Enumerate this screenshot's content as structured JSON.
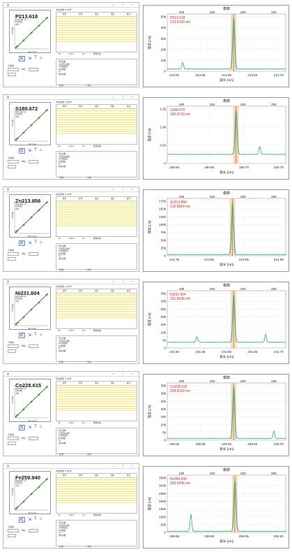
{
  "window": {
    "title": "图",
    "controls": "— □ ×"
  },
  "labels": {
    "table_tabs": "样品数据  (1)标样",
    "columns": [
      "类型",
      "名称",
      "浓度",
      "强度",
      "备注"
    ],
    "conc_unit": "[mg/L]",
    "x_axis": "浓度 [mg/L]",
    "y_axis": "强度 [cts]",
    "options": [
      "Off",
      "100%",
      "0%",
      "删除标准"
    ],
    "stats": [
      "回归系数",
      "平均回归系数",
      "平方根误差",
      "标准偏差",
      "0.1",
      "相关系数"
    ],
    "tools": [
      "⇱",
      "⇲",
      "T",
      "⌂"
    ],
    "side_label": "元素组",
    "field_label": "单位",
    "radio_a": "标准",
    "radio_b": "内标",
    "top_axis_title": "像数",
    "bottom_axis_title": "波长 [nm]",
    "y_title": "强度 [cts]"
  },
  "rows": [
    {
      "element": "P213.618",
      "sub": [
        "213.6182 nm",
        "背景校正",
        "平均"
      ],
      "nm_label": "213.6182 nm",
      "top_ticks": [
        "100",
        "150",
        "200",
        "250"
      ],
      "x_ticks": [
        "213.50",
        "213.55",
        "213.60",
        "213.65",
        "213.70"
      ],
      "y_ticks": [
        "50k",
        "40k",
        "30k",
        "20k",
        "10k",
        "0"
      ],
      "y_max": 55,
      "peak": 0.56,
      "side_peaks": [
        [
          0.13,
          0.13
        ]
      ],
      "baseline": 0.04
    },
    {
      "element": "S180.672",
      "sub": [
        "180.6720 nm",
        "背景校正",
        "平均"
      ],
      "nm_label": "180.6720 nm",
      "top_ticks": [
        "100",
        "150",
        "200",
        "250"
      ],
      "x_ticks": [
        "180.60",
        "180.65",
        "180.70",
        "180.75"
      ],
      "y_ticks": [
        "1.5k",
        "1.0k",
        "0.5k",
        "0"
      ],
      "y_max": 1.6,
      "peak": 0.58,
      "side_peaks": [
        [
          0.78,
          0.18
        ]
      ],
      "baseline": 0.16
    },
    {
      "element": "Zn213.856",
      "sub": [
        "213.8560 nm",
        "背景校正",
        "平均"
      ],
      "nm_label": "213.8560 nm",
      "top_ticks": [
        "100",
        "150",
        "200",
        "250"
      ],
      "x_ticks": [
        "213.75",
        "213.80",
        "213.85",
        "213.90"
      ],
      "y_ticks": [
        "175k",
        "150k",
        "125k",
        "100k",
        "75k",
        "50k",
        "25k",
        "0"
      ],
      "y_max": 180,
      "peak": 0.55,
      "side_peaks": [],
      "baseline": 0.02
    },
    {
      "element": "Ni231.604",
      "sub": [
        "231.6036 nm",
        "背景校正",
        "平均"
      ],
      "nm_label": "231.6036 nm",
      "top_ticks": [
        "100",
        "150",
        "200",
        "250"
      ],
      "x_ticks": [
        "231.50",
        "231.55",
        "231.60",
        "231.65",
        "231.70"
      ],
      "y_ticks": [
        "35k",
        "30k",
        "25k",
        "20k",
        "15k",
        "10k",
        "5k",
        "0"
      ],
      "y_max": 38,
      "peak": 0.56,
      "side_peaks": [
        [
          0.25,
          0.12
        ],
        [
          0.83,
          0.16
        ]
      ],
      "baseline": 0.1
    },
    {
      "element": "Co228.615",
      "sub": [
        "228.6150 nm",
        "背景校正",
        "平均"
      ],
      "nm_label": "228.6150 nm",
      "top_ticks": [
        "100",
        "150",
        "200",
        "250"
      ],
      "x_ticks": [
        "228.50",
        "228.55",
        "228.60",
        "228.65",
        "228.70"
      ],
      "y_ticks": [
        "35k",
        "30k",
        "25k",
        "20k",
        "15k",
        "10k",
        "5k",
        "0"
      ],
      "y_max": 38,
      "peak": 0.56,
      "side_peaks": [
        [
          0.9,
          0.14
        ]
      ],
      "baseline": 0.03
    },
    {
      "element": "Fe259.940",
      "sub": [
        "259.9396 nm",
        "背景校正",
        "平均"
      ],
      "nm_label": "259.9396 nm",
      "top_ticks": [
        "100",
        "150",
        "200",
        "250"
      ],
      "x_ticks": [
        "259.85",
        "259.90",
        "259.95",
        "260.00"
      ],
      "y_ticks": [
        "350k",
        "300k",
        "250k",
        "200k",
        "150k",
        "100k",
        "50k",
        "0"
      ],
      "y_max": 380,
      "peak": 0.57,
      "side_peaks": [
        [
          0.2,
          0.32
        ]
      ],
      "baseline": 0.02
    }
  ]
}
